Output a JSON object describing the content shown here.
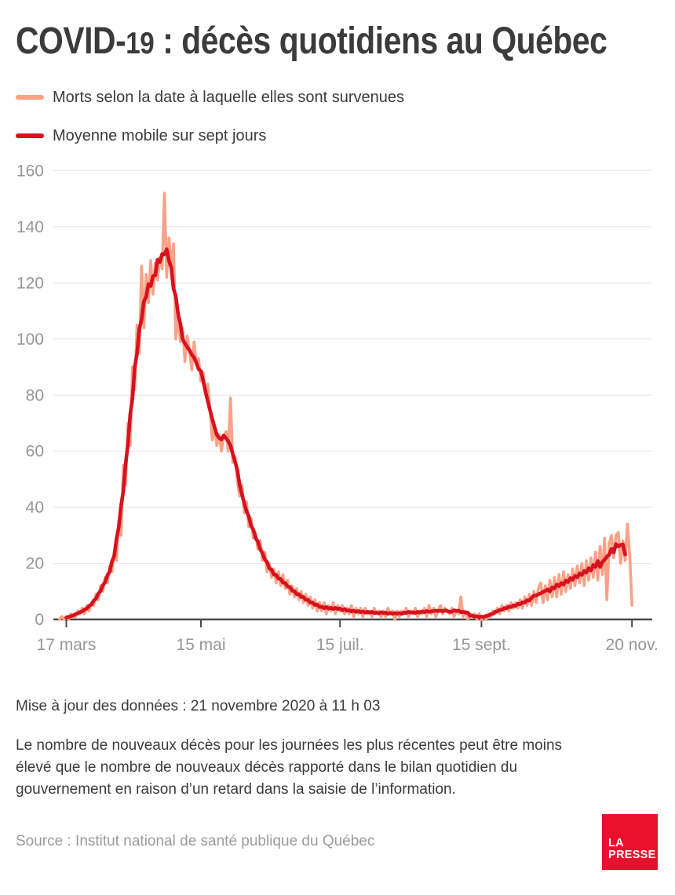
{
  "header": {
    "title_prefix": "COVID-",
    "title_number": "19",
    "title_suffix": " : décès quotidiens au Québec"
  },
  "legend": [
    {
      "label": "Morts selon la date à laquelle elles sont survenues",
      "color": "#f9a287"
    },
    {
      "label": "Moyenne mobile sur sept jours",
      "color": "#d8111f"
    }
  ],
  "footer": {
    "update_line": "Mise à jour des données : 21 novembre 2020 à 11 h 03",
    "notice_lines": [
      "Le nombre de nouveaux décès pour les journées les plus récentes peut être moins",
      "élevé que le nombre de nouveaux décès rapporté dans le bilan quotidien du",
      "gouvernement en raison d’un retard dans la saisie de l’information."
    ],
    "source": "Source : Institut national de santé publique du Québec",
    "logo_lines": [
      "LA",
      "PRESSE"
    ],
    "logo_color": "#e8112d"
  },
  "chart_data": {
    "type": "line",
    "title": "COVID-19 : décès quotidiens au Québec",
    "xlabel": "",
    "ylabel": "",
    "x_unit": "day",
    "start_date": "2020-03-14",
    "end_date": "2020-11-20",
    "ylim": [
      0,
      160
    ],
    "y_ticks": [
      0,
      20,
      40,
      60,
      80,
      100,
      120,
      140,
      160
    ],
    "x_ticks": [
      {
        "index": 3,
        "label": "17 mars"
      },
      {
        "index": 62,
        "label": "15 mai"
      },
      {
        "index": 123,
        "label": "15 juil."
      },
      {
        "index": 185,
        "label": "15 sept."
      },
      {
        "index": 251,
        "label": "20 nov."
      }
    ],
    "grid": true,
    "legend_position": "top-left",
    "colors": {
      "daily": "#f9a287",
      "average": "#d8111f",
      "grid": "#e4e4e4",
      "axis": "#4a4a4a",
      "axis_text": "#969696"
    },
    "series": [
      {
        "name": "Morts selon la date à laquelle elles sont survenues",
        "color": "#f9a287",
        "values": [
          0,
          1,
          0,
          1,
          0,
          2,
          1,
          1,
          3,
          2,
          4,
          2,
          5,
          3,
          6,
          5,
          9,
          7,
          12,
          10,
          15,
          13,
          19,
          17,
          24,
          21,
          35,
          30,
          55,
          48,
          70,
          62,
          90,
          82,
          105,
          95,
          126,
          104,
          123,
          113,
          128,
          116,
          127,
          121,
          129,
          125,
          152,
          122,
          136,
          126,
          134,
          100,
          108,
          99,
          104,
          92,
          101,
          96,
          89,
          99,
          91,
          93,
          85,
          88,
          80,
          84,
          75,
          64,
          69,
          62,
          66,
          60,
          65,
          67,
          60,
          79,
          56,
          58,
          49,
          44,
          48,
          38,
          42,
          33,
          36,
          29,
          31,
          25,
          28,
          21,
          24,
          17,
          20,
          15,
          18,
          13,
          17,
          12,
          16,
          11,
          14,
          9,
          12,
          8,
          11,
          7,
          10,
          6,
          9,
          5,
          8,
          4,
          7,
          3,
          6,
          3,
          6,
          2,
          5,
          3,
          6,
          2,
          5,
          3,
          5,
          2,
          4,
          2,
          5,
          1,
          4,
          2,
          4,
          1,
          4,
          2,
          3,
          1,
          4,
          2,
          3,
          1,
          3,
          1,
          4,
          2,
          3,
          0,
          3,
          1,
          3,
          2,
          4,
          1,
          3,
          2,
          4,
          1,
          3,
          2,
          4,
          1,
          5,
          2,
          4,
          1,
          3,
          5,
          2,
          4,
          3,
          2,
          4,
          1,
          3,
          2,
          8,
          1,
          3,
          0,
          2,
          1,
          2,
          0,
          2,
          0,
          1,
          0,
          2,
          1,
          3,
          2,
          4,
          2,
          5,
          3,
          5,
          3,
          6,
          4,
          6,
          4,
          7,
          4,
          8,
          5,
          9,
          5,
          10,
          6,
          11,
          13,
          6,
          12,
          7,
          14,
          8,
          15,
          8,
          16,
          9,
          17,
          10,
          16,
          11,
          18,
          12,
          19,
          13,
          20,
          12,
          21,
          14,
          22,
          15,
          24,
          14,
          26,
          16,
          29,
          7,
          27,
          30,
          22,
          30,
          31,
          20,
          28,
          21,
          34,
          23,
          5
        ]
      },
      {
        "name": "Moyenne mobile sur sept jours",
        "color": "#d8111f",
        "derived_from": "series 0",
        "window": 7,
        "centered": true
      }
    ]
  }
}
